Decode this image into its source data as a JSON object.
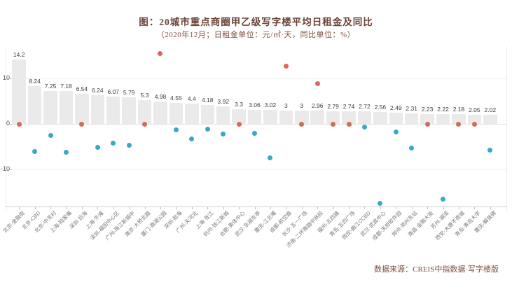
{
  "page": {
    "title": "图：20城市重点商圈甲乙级写字楼平均日租金及同比",
    "subtitle": "（2020年12月；日租金单位：元/㎡·天，同比单位：%）",
    "source": "数据来源：CREIS中指数据·写字楼版"
  },
  "colors": {
    "bar": "#eaeaea",
    "dot_positive": "#d8685a",
    "dot_negative": "#3aa7c9",
    "grid_zero": "#e3e3e3",
    "grid_faint": "#f1f1f1",
    "title_text": "#6a4236"
  },
  "chart_data": {
    "type": "bar",
    "title": "图：20城市重点商圈甲乙级写字楼平均日租金及同比",
    "subtitle": "（2020年12月；日租金单位：元/㎡·天，同比单位：%）",
    "categories": [
      "北京-金融街",
      "北京-CBD",
      "北京-中关村",
      "上海-陆家嘴",
      "深圳-后海",
      "上海-外滩",
      "深圳-福田中心区",
      "广州-珠江新城中",
      "南京-大桥北路",
      "厦门-南湖公园",
      "深圳-前海",
      "广州-天河北",
      "上海-张江",
      "杭州-钱江新城",
      "合肥-奥体中心",
      "武汉-东湖东亭",
      "重庆-江北嘴",
      "成都-航空路",
      "长沙-五一广场",
      "济南-二环南路中商段",
      "福州-五四路",
      "青岛-五四广场",
      "西安-曲江CCBD",
      "武汉-武昌中心",
      "成都-天府软件园",
      "郑州-郑州东站",
      "南昌-金融大街",
      "苏州-湖滨",
      "西安-大唐不夜城",
      "青岛-青岛大学",
      "重庆-解放碑"
    ],
    "series": [
      {
        "name": "平均日租金（元/㎡·天）",
        "type": "bar",
        "values": [
          14.2,
          8.24,
          7.25,
          7.18,
          6.54,
          6.24,
          6.07,
          5.79,
          5.3,
          4.98,
          4.55,
          4.4,
          4.18,
          3.92,
          3.3,
          3.06,
          3.02,
          3,
          3,
          2.96,
          2.79,
          2.74,
          2.72,
          2.56,
          2.49,
          2.31,
          2.23,
          2.22,
          2.18,
          2.05,
          2.02
        ],
        "labels": [
          "14.2",
          "8.24",
          "7.25",
          "7.18",
          "6.54",
          "6.24",
          "6.07",
          "5.79",
          "5.3",
          "4.98",
          "4.55",
          "4.4",
          "4.18",
          "3.92",
          "3.3",
          "3.06",
          "3.02",
          "3",
          "3",
          "2.96",
          "2.79",
          "2.74",
          "2.72",
          "2.56",
          "2.49",
          "2.31",
          "2.23",
          "2.22",
          "2.18",
          "2.05",
          "2.02"
        ]
      },
      {
        "name": "同比（%）",
        "type": "scatter",
        "values": [
          0,
          -6,
          -2.5,
          -6.3,
          0,
          -5.2,
          -4.3,
          -4.7,
          0,
          15.4,
          -1.3,
          -3.3,
          -1.1,
          -2.3,
          0,
          -2,
          -7.5,
          12.7,
          0,
          8.9,
          0,
          0,
          -0.7,
          -17.5,
          -1.8,
          -5.3,
          0,
          -16.6,
          0,
          0,
          -5.8
        ]
      }
    ],
    "y_axis": {
      "ticks": [
        10,
        0,
        -10
      ],
      "range": [
        -18,
        17
      ],
      "label": ""
    },
    "legend": "none",
    "grid": "horizontal-faint"
  }
}
